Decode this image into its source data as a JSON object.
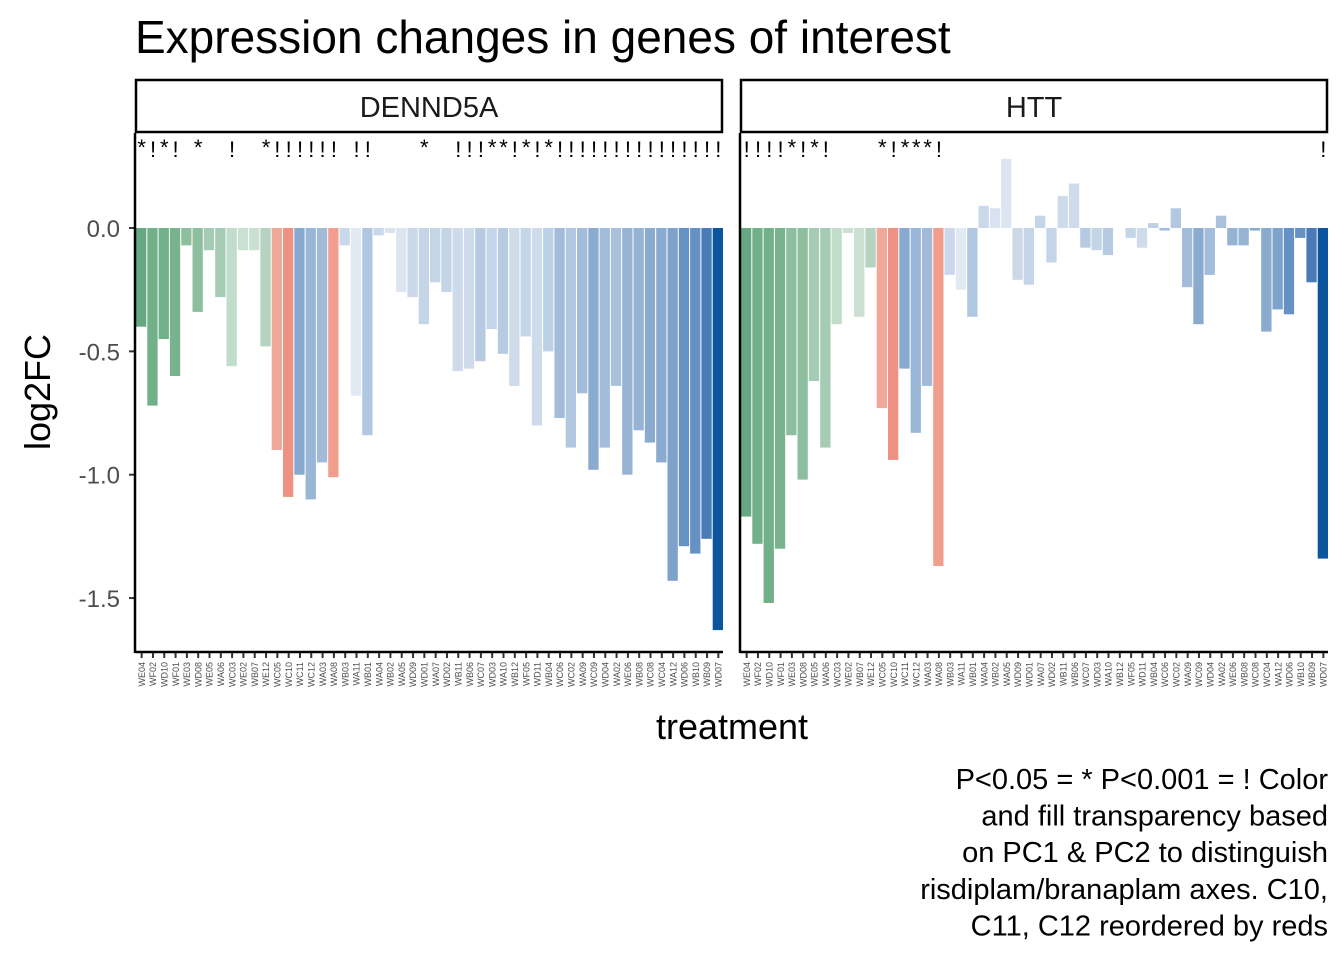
{
  "chart_data": {
    "type": "bar",
    "title": "Expression changes in genes of interest",
    "xlabel": "treatment",
    "ylabel": "log2FC",
    "ylim": [
      -1.72,
      0.32
    ],
    "yticks": [
      0.0,
      -0.5,
      -1.0,
      -1.5
    ],
    "ytick_labels": [
      "0.0",
      "-0.5",
      "-1.0",
      "-1.5"
    ],
    "grid": false,
    "caption": [
      "P<0.05 = * P<0.001 = ! Color",
      "and fill transparency based",
      "on PC1 & PC2 to distinguish",
      "risdiplam/branaplam axes. C10,",
      "C11, C12 reordered by reds"
    ],
    "categories": [
      "WE04",
      "WF02",
      "WD10",
      "WF01",
      "WE03",
      "WD08",
      "WE05",
      "WA06",
      "WC03",
      "WE02",
      "WB07",
      "WE12",
      "WC05",
      "WC10",
      "WC11",
      "WC12",
      "WA03",
      "WA08",
      "WB03",
      "WA11",
      "WB01",
      "WA04",
      "WB02",
      "WA05",
      "WD09",
      "WD01",
      "WA07",
      "WD02",
      "WB11",
      "WB06",
      "WC07",
      "WD03",
      "WA10",
      "WB12",
      "WF05",
      "WD11",
      "WB04",
      "WC06",
      "WC02",
      "WA09",
      "WC09",
      "WD04",
      "WA02",
      "WE06",
      "WB08",
      "WC08",
      "WC04",
      "WA12",
      "WD06",
      "WB10",
      "WB09",
      "WD07"
    ],
    "colors": [
      "#66a882",
      "#72b08a",
      "#72b08a",
      "#78b38e",
      "#8dbf9e",
      "#8dbf9e",
      "#a6cbb4",
      "#a6cbb4",
      "#c2dccc",
      "#c9e0d2",
      "#c9e0d2",
      "#b5d3c0",
      "#f0a89a",
      "#ee9082",
      "#88a9cf",
      "#9ab6d6",
      "#a0bad8",
      "#f19e8f",
      "#c9d8ea",
      "#e1e9f3",
      "#b0c7e1",
      "#c9d8ea",
      "#d8e2f0",
      "#dde5f1",
      "#cbd8e9",
      "#c5d5e8",
      "#c5d5e8",
      "#c5d5e8",
      "#cddbeb",
      "#cddbeb",
      "#b6cae2",
      "#c5d5e8",
      "#b6cae2",
      "#cddbeb",
      "#c5d5e8",
      "#cddbeb",
      "#bcd0e6",
      "#a3bcda",
      "#b2c8e0",
      "#a3bcda",
      "#8aaace",
      "#a3bcda",
      "#aac1dd",
      "#96b3d4",
      "#96b3d4",
      "#8aaace",
      "#8aaace",
      "#7fa2cb",
      "#6591c4",
      "#6591c4",
      "#4a7bb7",
      "#0b559f"
    ],
    "panels": [
      {
        "name": "DENND5A",
        "values": [
          -0.4,
          -0.72,
          -0.45,
          -0.6,
          -0.07,
          -0.34,
          -0.09,
          -0.28,
          -0.56,
          -0.09,
          -0.09,
          -0.48,
          -0.9,
          -1.09,
          -1.0,
          -1.1,
          -0.95,
          -1.01,
          -0.07,
          -0.68,
          -0.84,
          -0.03,
          -0.02,
          -0.26,
          -0.28,
          -0.39,
          -0.22,
          -0.26,
          -0.58,
          -0.57,
          -0.54,
          -0.41,
          -0.51,
          -0.64,
          -0.44,
          -0.8,
          -0.5,
          -0.77,
          -0.89,
          -0.67,
          -0.98,
          -0.89,
          -0.64,
          -1.0,
          -0.82,
          -0.87,
          -0.95,
          -1.43,
          -1.29,
          -1.32,
          -1.26,
          -1.63
        ],
        "significance": [
          "*",
          "!",
          "*",
          "!",
          "",
          "*",
          "",
          "",
          "!",
          "",
          "",
          "*",
          "!",
          "!",
          "!",
          "!",
          "!",
          "!",
          "",
          "!",
          "!",
          "",
          "",
          "",
          "",
          "*",
          "",
          "",
          "!",
          "!",
          "!",
          "*",
          "*",
          "!",
          "*",
          "!",
          "*",
          "!",
          "!",
          "!",
          "!",
          "!",
          "!",
          "!",
          "!",
          "!",
          "!",
          "!",
          "!",
          "!",
          "!",
          "!"
        ]
      },
      {
        "name": "HTT",
        "values": [
          -1.17,
          -1.28,
          -1.52,
          -1.3,
          -0.84,
          -1.02,
          -0.62,
          -0.89,
          -0.39,
          -0.02,
          -0.36,
          -0.16,
          -0.73,
          -0.94,
          -0.57,
          -0.83,
          -0.64,
          -1.37,
          -0.19,
          -0.25,
          -0.36,
          0.09,
          0.08,
          0.28,
          -0.21,
          -0.23,
          0.05,
          -0.14,
          0.13,
          0.18,
          -0.08,
          -0.09,
          -0.11,
          0.0,
          -0.04,
          -0.08,
          0.02,
          -0.01,
          0.08,
          -0.24,
          -0.39,
          -0.19,
          0.05,
          -0.07,
          -0.07,
          -0.01,
          -0.42,
          -0.33,
          -0.35,
          -0.04,
          -0.22,
          -1.34
        ],
        "significance": [
          "!",
          "!",
          "!",
          "!",
          "*",
          "!",
          "*",
          "!",
          "",
          "",
          "",
          "",
          "*",
          "!",
          "*",
          "*",
          "*",
          "!",
          "",
          "",
          "",
          "",
          "",
          "",
          "",
          "",
          "",
          "",
          "",
          "",
          "",
          "",
          "",
          "",
          "",
          "",
          "",
          "",
          "",
          "",
          "",
          "",
          "",
          "",
          "",
          "",
          "",
          "",
          "",
          "",
          "",
          "!"
        ]
      }
    ]
  }
}
